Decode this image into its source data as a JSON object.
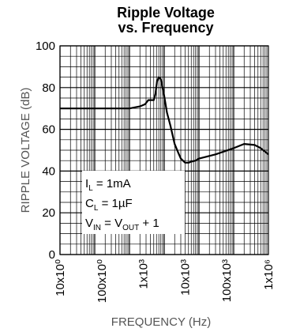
{
  "chart_data": {
    "type": "line",
    "title_line1": "Ripple Voltage",
    "title_line2": "vs. Frequency",
    "xlabel": "FREQUENCY (Hz)",
    "ylabel": "RIPPLE VOLTAGE (dB)",
    "xscale": "log",
    "xlim": [
      1,
      1000000
    ],
    "ylim": [
      0,
      100
    ],
    "grid": true,
    "x_tick_labels": [
      "10x10⁰",
      "100x10⁰",
      "1x10³",
      "10x10³",
      "100x10³",
      "1x10⁶"
    ],
    "y_tick_labels": [
      "0",
      "20",
      "40",
      "60",
      "80",
      "100"
    ],
    "y_ticks": [
      0,
      20,
      40,
      60,
      80,
      100
    ],
    "line_color": "#000000",
    "series": [
      {
        "x": [
          1,
          10,
          100,
          200,
          280,
          350,
          420,
          500,
          560,
          620,
          700,
          800,
          1000,
          1200,
          1500,
          2000,
          2500,
          3000,
          4000,
          5000,
          6000,
          8000,
          10000,
          30000,
          100000,
          200000,
          400000,
          600000,
          1000000
        ],
        "y": [
          70,
          70,
          70,
          71,
          72,
          74,
          74,
          74,
          77,
          83,
          85,
          84,
          76,
          68,
          62,
          53,
          49,
          46,
          44,
          44,
          44.5,
          45,
          46,
          48,
          51,
          53,
          52.5,
          51,
          48
        ]
      }
    ],
    "annotations": {
      "il_main": "I",
      "il_sub": "L",
      "il_rest": " = 1mA",
      "cl_main": "C",
      "cl_sub": "L",
      "cl_rest": " = 1µF",
      "vin_main": "V",
      "vin_sub": "IN",
      "vin_mid": " = V",
      "vout_sub": "OUT",
      "vin_rest": " + 1"
    }
  }
}
